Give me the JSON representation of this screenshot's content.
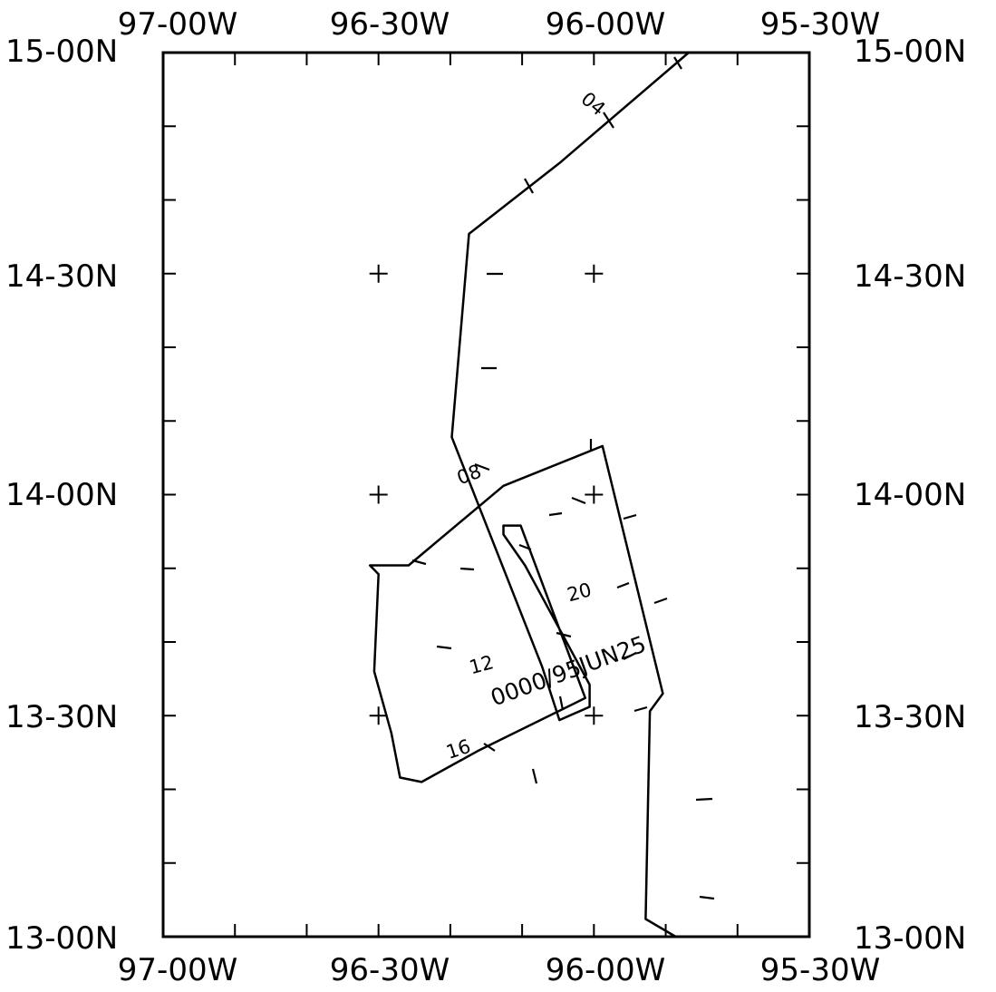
{
  "chart_data": {
    "type": "track_map",
    "title": "",
    "map_extent": {
      "lon_west": -97.0,
      "lon_east": -95.5,
      "lat_south": 13.0,
      "lat_north": 15.0
    },
    "top_axis_labels": [
      "97-00W",
      "96-30W",
      "96-00W",
      "95-30W"
    ],
    "bottom_axis_labels": [
      "97-00W",
      "96-30W",
      "96-00W",
      "95-30W"
    ],
    "left_axis_labels": [
      "15-00N",
      "14-30N",
      "14-00N",
      "13-30N",
      "13-00N"
    ],
    "right_axis_labels": [
      "15-00N",
      "14-30N",
      "14-00N",
      "13-30N",
      "13-00N"
    ],
    "grid_crosses": [
      {
        "lon": -96.5,
        "lat": 14.5
      },
      {
        "lon": -96.0,
        "lat": 14.5
      },
      {
        "lon": -96.5,
        "lat": 14.0
      },
      {
        "lon": -96.0,
        "lat": 14.0
      },
      {
        "lon": -96.5,
        "lat": 13.5
      },
      {
        "lon": -96.0,
        "lat": 13.5
      }
    ],
    "track": {
      "color": "#000000",
      "points": [
        {
          "lon": -95.78,
          "lat": 15.0
        },
        {
          "lon": -96.08,
          "lat": 14.75
        },
        {
          "lon": -96.29,
          "lat": 14.59
        },
        {
          "lon": -96.33,
          "lat": 14.13
        },
        {
          "lon": -96.12,
          "lat": 13.61
        },
        {
          "lon": -96.08,
          "lat": 13.49
        },
        {
          "lon": -96.01,
          "lat": 13.52
        },
        {
          "lon": -96.01,
          "lat": 13.57
        },
        {
          "lon": -96.16,
          "lat": 13.84
        },
        {
          "lon": -96.21,
          "lat": 13.91
        },
        {
          "lon": -96.21,
          "lat": 13.93
        },
        {
          "lon": -96.17,
          "lat": 13.93
        },
        {
          "lon": -96.02,
          "lat": 13.54
        },
        {
          "lon": -96.27,
          "lat": 13.42
        },
        {
          "lon": -96.4,
          "lat": 13.35
        },
        {
          "lon": -96.45,
          "lat": 13.36
        },
        {
          "lon": -96.47,
          "lat": 13.46
        },
        {
          "lon": -96.51,
          "lat": 13.6
        },
        {
          "lon": -96.5,
          "lat": 13.82
        },
        {
          "lon": -96.52,
          "lat": 13.84
        },
        {
          "lon": -96.43,
          "lat": 13.84
        },
        {
          "lon": -96.21,
          "lat": 14.02
        },
        {
          "lon": -95.98,
          "lat": 14.11
        },
        {
          "lon": -95.84,
          "lat": 13.55
        },
        {
          "lon": -95.87,
          "lat": 13.51
        },
        {
          "lon": -95.88,
          "lat": 13.04
        },
        {
          "lon": -95.81,
          "lat": 13.0
        }
      ],
      "time_labels": [
        "04",
        "08",
        "12",
        "16",
        "20"
      ],
      "date_label": "0000/95JUN25"
    }
  }
}
